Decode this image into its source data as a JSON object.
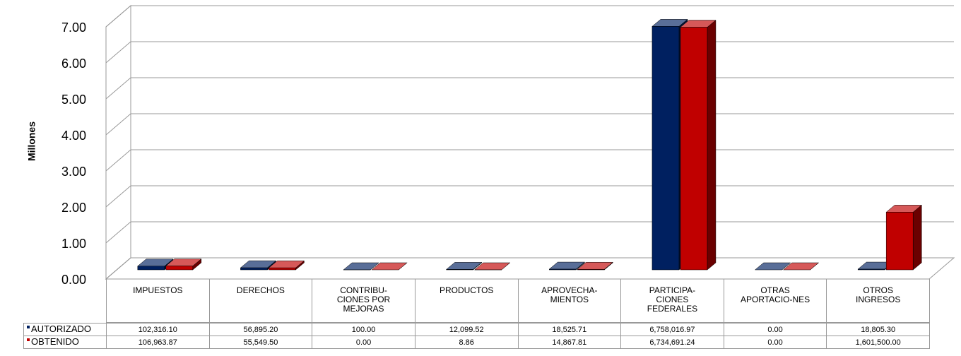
{
  "chart_data": {
    "type": "bar3d",
    "ylabel": "Millones",
    "categories": [
      "IMPUESTOS",
      "DERECHOS",
      "CONTRIBU-\nCIONES POR\nMEJORAS",
      "PRODUCTOS",
      "APROVECHA-\nMIENTOS",
      "PARTICIPA-\nCIONES\nFEDERALES",
      "OTRAS\nAPORTACIO-NES",
      "OTROS\nINGRESOS"
    ],
    "series": [
      {
        "name": "AUTORIZADO",
        "color": "#002060",
        "values": [
          0.1023161,
          0.0568952,
          0.0001,
          0.01209952,
          0.01852571,
          6.75801697,
          0,
          0.0188053
        ],
        "value_labels": [
          "102,316.10",
          "56,895.20",
          "100.00",
          "12,099.52",
          "18,525.71",
          "6,758,016.97",
          "0.00",
          "18,805.30"
        ]
      },
      {
        "name": "OBTENIDO",
        "color": "#c00000",
        "values": [
          0.10696387,
          0.0555495,
          0,
          8.86e-06,
          0.01486781,
          6.73469124,
          0,
          1.6015
        ],
        "value_labels": [
          "106,963.87",
          "55,549.50",
          "0.00",
          "8.86",
          "14,867.81",
          "6,734,691.24",
          "0.00",
          "1,601,500.00"
        ]
      }
    ],
    "ylim": [
      0,
      7
    ],
    "yticks": [
      {
        "value": 0,
        "label": "0.00"
      },
      {
        "value": 1,
        "label": "1.00"
      },
      {
        "value": 2,
        "label": "2.00"
      },
      {
        "value": 3,
        "label": "3.00"
      },
      {
        "value": 4,
        "label": "4.00"
      },
      {
        "value": 5,
        "label": "5.00"
      },
      {
        "value": 6,
        "label": "6.00"
      },
      {
        "value": 7,
        "label": "7.00"
      }
    ],
    "grid": true
  }
}
